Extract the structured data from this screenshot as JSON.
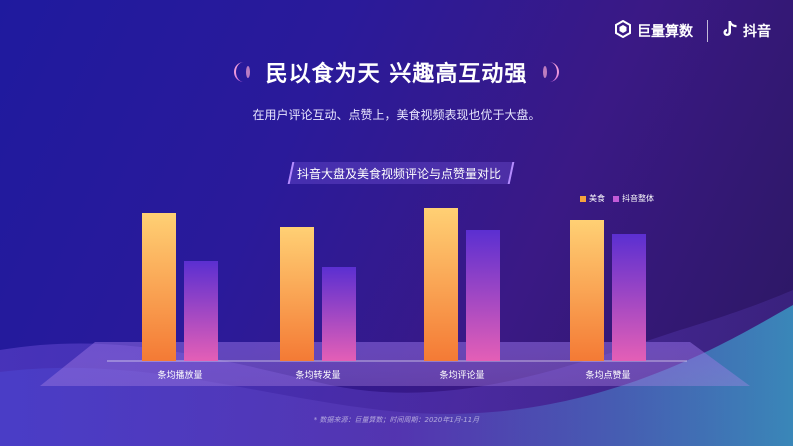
{
  "brand": {
    "left_name": "巨量算数",
    "right_name": "抖音"
  },
  "title": "民以食为天  兴趣高互动强",
  "subtitle": "在用户评论互动、点赞上，美食视频表现也优于大盘。",
  "footnote": "* 数据来源：巨量算数；时间周期：2020年1月-11月",
  "colors": {
    "series_food_top": "#ffd074",
    "series_food_bottom": "#f47a35",
    "series_all_top": "#5b2fd1",
    "series_all_bottom": "#e45fb6"
  },
  "chart_data": {
    "type": "bar",
    "title": "抖音大盘及美食视频评论与点赞量对比",
    "categories": [
      "条均播放量",
      "条均转发量",
      "条均评论量",
      "条均点赞量"
    ],
    "series": [
      {
        "name": "美食",
        "values": [
          148,
          134,
          153,
          141
        ]
      },
      {
        "name": "抖音整体",
        "values": [
          100,
          94,
          131,
          127
        ]
      }
    ],
    "ylim": [
      0,
      160
    ],
    "grid": false,
    "legend_position": "top-right"
  }
}
